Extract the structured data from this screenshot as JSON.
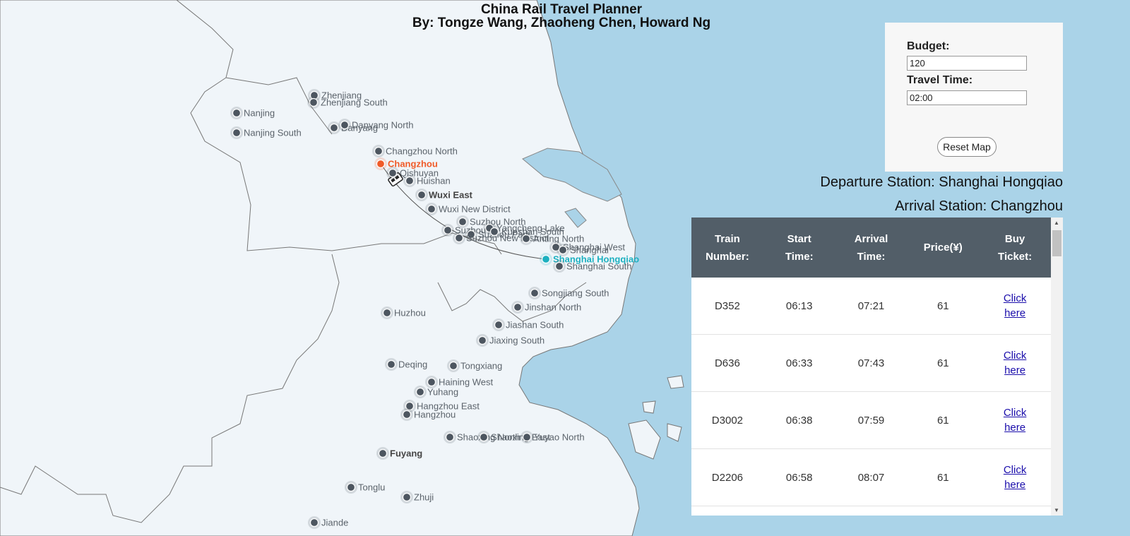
{
  "header": {
    "title": "China Rail Travel Planner",
    "subtitle": "By: Tongze Wang, Zhaoheng Chen, Howard Ng"
  },
  "controls": {
    "budget_label": "Budget:",
    "budget_value": "120",
    "time_label": "Travel Time:",
    "time_value": "02:00",
    "reset_label": "Reset Map"
  },
  "route": {
    "departure_text": "Departure Station: Shanghai Hongqiao",
    "arrival_text": "Arrival Station: Changzhou",
    "departure_station": "Shanghai Hongqiao",
    "arrival_station": "Changzhou"
  },
  "table": {
    "headers": [
      {
        "line1": "Train",
        "line2": "Number:"
      },
      {
        "line1": "Start",
        "line2": "Time:"
      },
      {
        "line1": "Arrival",
        "line2": "Time:"
      },
      {
        "line1": "Price(¥)",
        "line2": ""
      },
      {
        "line1": "Buy",
        "line2": "Ticket:"
      }
    ],
    "rows": [
      {
        "train": "D352",
        "start": "06:13",
        "arrive": "07:21",
        "price": "61",
        "link1": "Click",
        "link2": "here"
      },
      {
        "train": "D636",
        "start": "06:33",
        "arrive": "07:43",
        "price": "61",
        "link1": "Click",
        "link2": "here"
      },
      {
        "train": "D3002",
        "start": "06:38",
        "arrive": "07:59",
        "price": "61",
        "link1": "Click",
        "link2": "here"
      },
      {
        "train": "D2206",
        "start": "06:58",
        "arrive": "08:07",
        "price": "61",
        "link1": "Click",
        "link2": "here"
      }
    ]
  },
  "map": {
    "stations": [
      {
        "name": "Zhenjiang"
      },
      {
        "name": "Zhenjiang South"
      },
      {
        "name": "Nanjing"
      },
      {
        "name": "Nanjing South"
      },
      {
        "name": "Danyang"
      },
      {
        "name": "Danyang North"
      },
      {
        "name": "Changzhou North"
      },
      {
        "name": "Changzhou",
        "highlight": "arrival"
      },
      {
        "name": "Qishuyan"
      },
      {
        "name": "Huishan"
      },
      {
        "name": "Wuxi East"
      },
      {
        "name": "Wuxi New District"
      },
      {
        "name": "Suzhou North"
      },
      {
        "name": "Suzhou"
      },
      {
        "name": "Suzhou Park"
      },
      {
        "name": "Suzhou New District"
      },
      {
        "name": "Yangcheng Lake"
      },
      {
        "name": "Kunshan South"
      },
      {
        "name": "Anting North"
      },
      {
        "name": "Shanghai West"
      },
      {
        "name": "Shanghai"
      },
      {
        "name": "Shanghai Hongqiao",
        "highlight": "departure"
      },
      {
        "name": "Shanghai South"
      },
      {
        "name": "Songjiang South"
      },
      {
        "name": "Jinshan North"
      },
      {
        "name": "Jiashan South"
      },
      {
        "name": "Jiaxing South"
      },
      {
        "name": "Huzhou"
      },
      {
        "name": "Deqing"
      },
      {
        "name": "Tongxiang"
      },
      {
        "name": "Haining West"
      },
      {
        "name": "Yuhang"
      },
      {
        "name": "Hangzhou East"
      },
      {
        "name": "Hangzhou"
      },
      {
        "name": "Shaoxing North"
      },
      {
        "name": "Shaoxing East"
      },
      {
        "name": "Yuyao North"
      },
      {
        "name": "Fuyang"
      },
      {
        "name": "Tonglu"
      },
      {
        "name": "Zhuji"
      },
      {
        "name": "Jiande"
      }
    ],
    "colors": {
      "land": "#f0f5f9",
      "water": "#aad3e8",
      "station": "#4d5660",
      "arrival": "#f05a28",
      "departure": "#1db0c0",
      "header_bg": "#525e68"
    }
  }
}
